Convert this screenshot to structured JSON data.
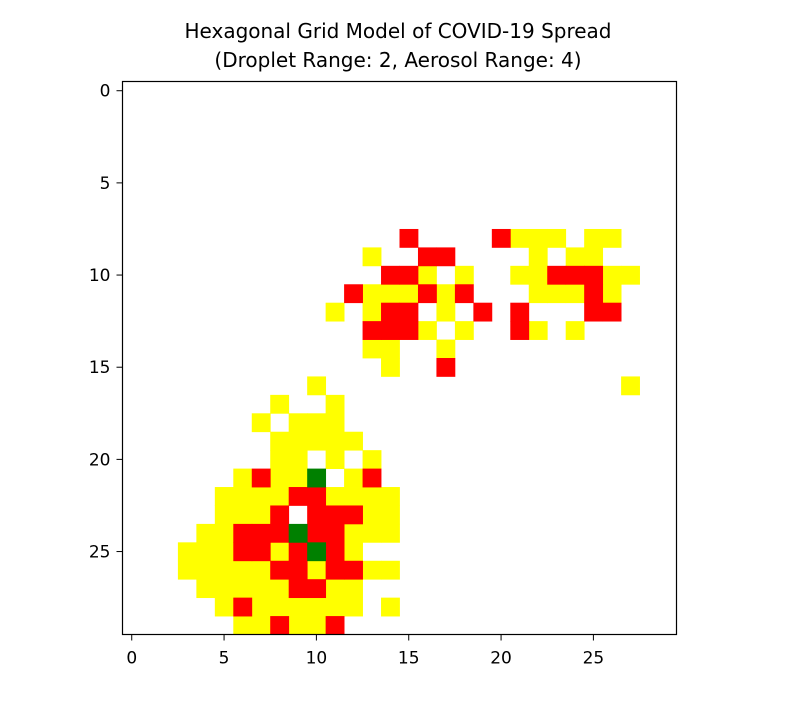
{
  "chart_data": {
    "type": "heatmap",
    "title_lines": [
      "Hexagonal Grid Model of COVID-19 Spread",
      "(Droplet Range: 2, Aerosol Range: 4)"
    ],
    "xlabel": "",
    "ylabel": "",
    "grid_size": [
      30,
      30
    ],
    "xlim": [
      -0.5,
      29.5
    ],
    "ylim": [
      29.5,
      -0.5
    ],
    "y_inverted": true,
    "xticks": [
      0,
      5,
      10,
      15,
      20,
      25
    ],
    "yticks": [
      0,
      5,
      10,
      15,
      20,
      25
    ],
    "grid": false,
    "colors": {
      "empty": "#ffffff",
      "exposed": "#ffff00",
      "infected": "#ff0000",
      "source": "#008000"
    },
    "cells": {
      "exposed": [
        [
          21,
          8
        ],
        [
          22,
          8
        ],
        [
          23,
          8
        ],
        [
          25,
          8
        ],
        [
          26,
          8
        ],
        [
          13,
          9
        ],
        [
          22,
          9
        ],
        [
          24,
          9
        ],
        [
          25,
          9
        ],
        [
          16,
          10
        ],
        [
          18,
          10
        ],
        [
          21,
          10
        ],
        [
          22,
          10
        ],
        [
          26,
          10
        ],
        [
          27,
          10
        ],
        [
          13,
          11
        ],
        [
          14,
          11
        ],
        [
          15,
          11
        ],
        [
          17,
          11
        ],
        [
          22,
          11
        ],
        [
          23,
          11
        ],
        [
          24,
          11
        ],
        [
          26,
          11
        ],
        [
          11,
          12
        ],
        [
          13,
          12
        ],
        [
          17,
          12
        ],
        [
          16,
          13
        ],
        [
          18,
          13
        ],
        [
          22,
          13
        ],
        [
          24,
          13
        ],
        [
          13,
          14
        ],
        [
          14,
          14
        ],
        [
          17,
          14
        ],
        [
          14,
          15
        ],
        [
          10,
          16
        ],
        [
          27,
          16
        ],
        [
          8,
          17
        ],
        [
          11,
          17
        ],
        [
          7,
          18
        ],
        [
          9,
          18
        ],
        [
          10,
          18
        ],
        [
          11,
          18
        ],
        [
          8,
          19
        ],
        [
          9,
          19
        ],
        [
          10,
          19
        ],
        [
          11,
          19
        ],
        [
          12,
          19
        ],
        [
          8,
          20
        ],
        [
          9,
          20
        ],
        [
          11,
          20
        ],
        [
          13,
          20
        ],
        [
          6,
          21
        ],
        [
          8,
          21
        ],
        [
          9,
          21
        ],
        [
          12,
          21
        ],
        [
          5,
          22
        ],
        [
          6,
          22
        ],
        [
          7,
          22
        ],
        [
          8,
          22
        ],
        [
          11,
          22
        ],
        [
          12,
          22
        ],
        [
          13,
          22
        ],
        [
          14,
          22
        ],
        [
          5,
          23
        ],
        [
          6,
          23
        ],
        [
          7,
          23
        ],
        [
          13,
          23
        ],
        [
          14,
          23
        ],
        [
          4,
          24
        ],
        [
          5,
          24
        ],
        [
          12,
          24
        ],
        [
          13,
          24
        ],
        [
          14,
          24
        ],
        [
          3,
          25
        ],
        [
          4,
          25
        ],
        [
          5,
          25
        ],
        [
          8,
          25
        ],
        [
          12,
          25
        ],
        [
          3,
          26
        ],
        [
          4,
          26
        ],
        [
          5,
          26
        ],
        [
          6,
          26
        ],
        [
          7,
          26
        ],
        [
          10,
          26
        ],
        [
          13,
          26
        ],
        [
          14,
          26
        ],
        [
          4,
          27
        ],
        [
          5,
          27
        ],
        [
          6,
          27
        ],
        [
          7,
          27
        ],
        [
          8,
          27
        ],
        [
          11,
          27
        ],
        [
          12,
          27
        ],
        [
          5,
          28
        ],
        [
          7,
          28
        ],
        [
          8,
          28
        ],
        [
          9,
          28
        ],
        [
          10,
          28
        ],
        [
          11,
          28
        ],
        [
          12,
          28
        ],
        [
          14,
          28
        ],
        [
          6,
          29
        ],
        [
          7,
          29
        ],
        [
          9,
          29
        ],
        [
          10,
          29
        ]
      ],
      "infected": [
        [
          15,
          8
        ],
        [
          20,
          8
        ],
        [
          16,
          9
        ],
        [
          17,
          9
        ],
        [
          14,
          10
        ],
        [
          15,
          10
        ],
        [
          23,
          10
        ],
        [
          24,
          10
        ],
        [
          25,
          10
        ],
        [
          12,
          11
        ],
        [
          16,
          11
        ],
        [
          18,
          11
        ],
        [
          25,
          11
        ],
        [
          15,
          12
        ],
        [
          14,
          12
        ],
        [
          19,
          12
        ],
        [
          21,
          12
        ],
        [
          25,
          12
        ],
        [
          26,
          12
        ],
        [
          13,
          13
        ],
        [
          14,
          13
        ],
        [
          15,
          13
        ],
        [
          21,
          13
        ],
        [
          17,
          15
        ],
        [
          7,
          21
        ],
        [
          13,
          21
        ],
        [
          9,
          22
        ],
        [
          10,
          22
        ],
        [
          8,
          23
        ],
        [
          10,
          23
        ],
        [
          11,
          23
        ],
        [
          12,
          23
        ],
        [
          6,
          24
        ],
        [
          7,
          24
        ],
        [
          8,
          24
        ],
        [
          10,
          24
        ],
        [
          11,
          24
        ],
        [
          6,
          25
        ],
        [
          7,
          25
        ],
        [
          9,
          25
        ],
        [
          11,
          25
        ],
        [
          8,
          26
        ],
        [
          9,
          26
        ],
        [
          11,
          26
        ],
        [
          12,
          26
        ],
        [
          9,
          27
        ],
        [
          10,
          27
        ],
        [
          6,
          28
        ],
        [
          8,
          29
        ],
        [
          11,
          29
        ]
      ],
      "source": [
        [
          10,
          21
        ],
        [
          9,
          24
        ],
        [
          10,
          25
        ]
      ]
    }
  }
}
